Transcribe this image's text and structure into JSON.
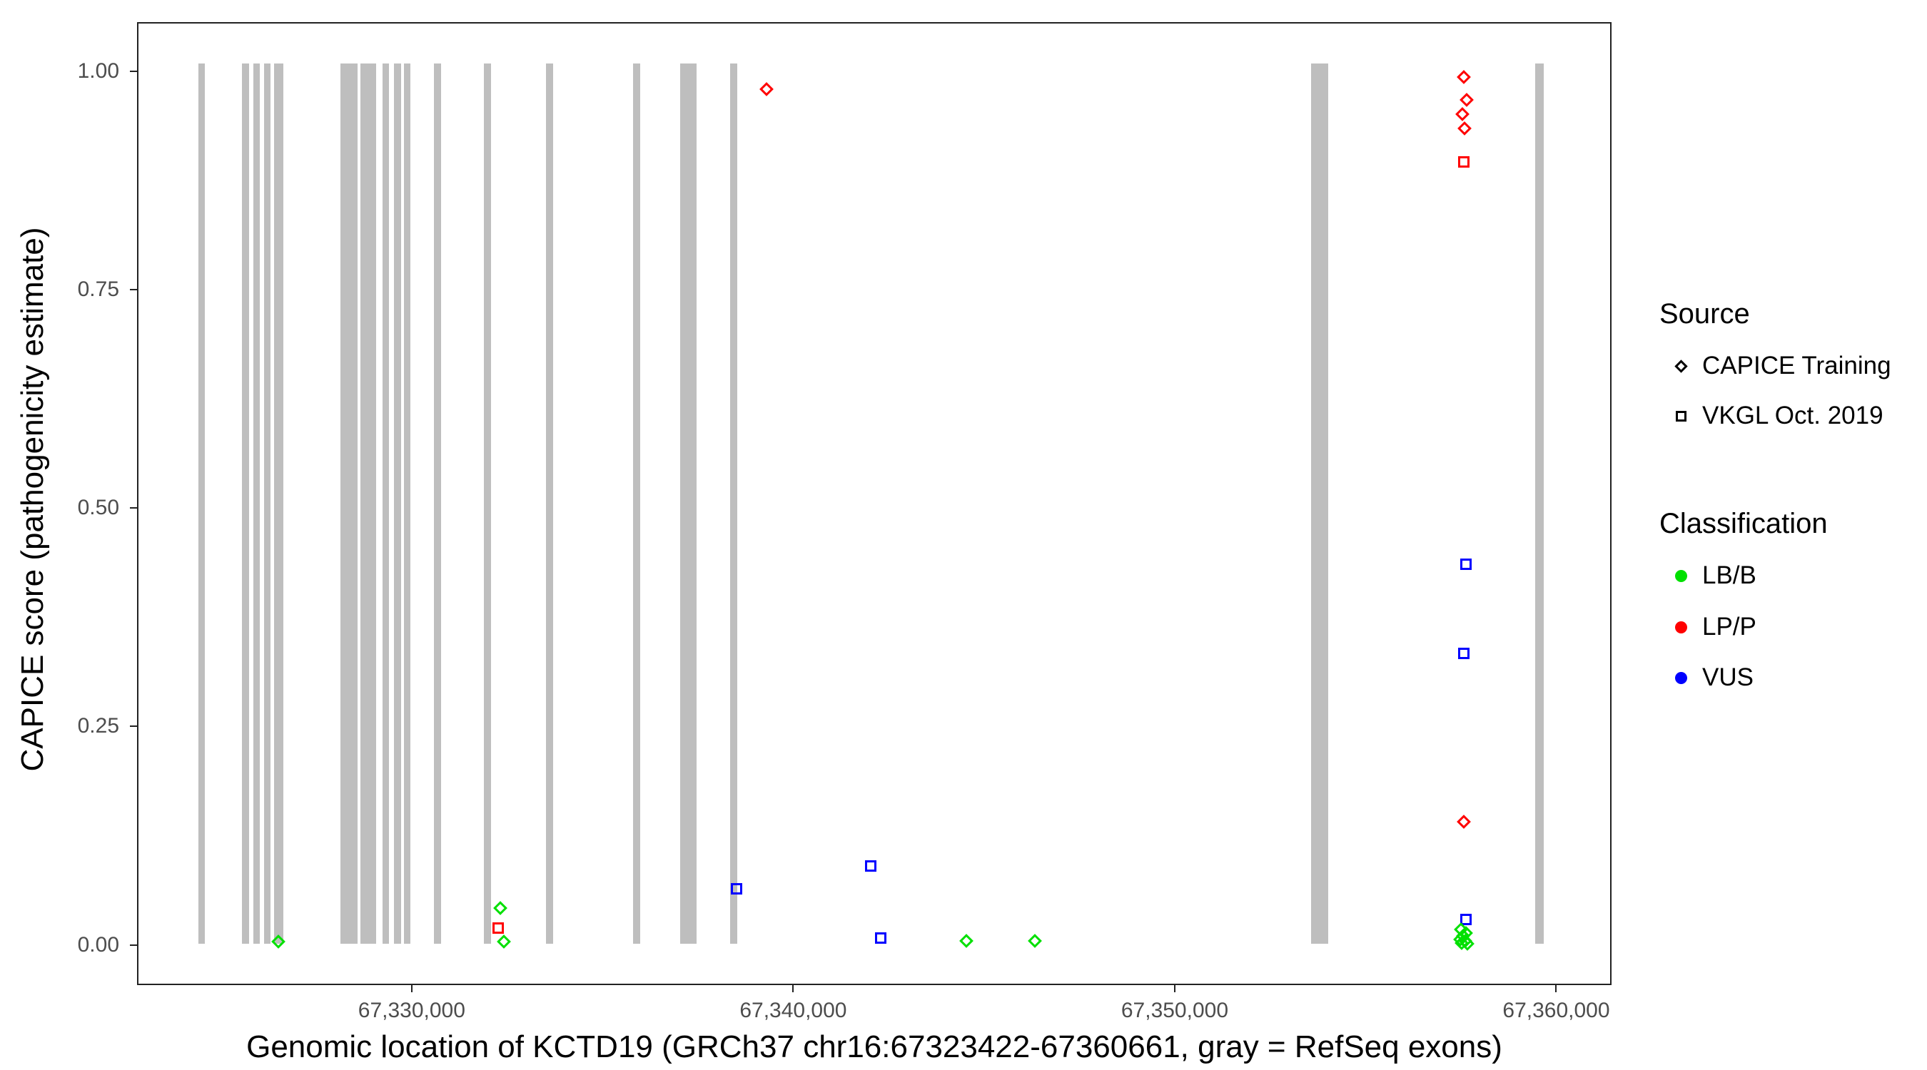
{
  "chart_data": {
    "type": "scatter",
    "title": "",
    "xlabel": "Genomic location of KCTD19 (GRCh37 chr16:67323422-67360661, gray = RefSeq exons)",
    "ylabel": "CAPICE score (pathogenicity estimate)",
    "xlim": [
      67322800,
      67361450
    ],
    "ylim": [
      -0.046,
      1.056
    ],
    "grid": false,
    "legend_position": "right",
    "x_ticks": [
      {
        "value": 67330000,
        "label": "67,330,000"
      },
      {
        "value": 67340000,
        "label": "67,340,000"
      },
      {
        "value": 67350000,
        "label": "67,350,000"
      },
      {
        "value": 67360000,
        "label": "67,360,000"
      }
    ],
    "y_ticks": [
      {
        "value": 0.0,
        "label": "0.00"
      },
      {
        "value": 0.25,
        "label": "0.25"
      },
      {
        "value": 0.5,
        "label": "0.50"
      },
      {
        "value": 0.75,
        "label": "0.75"
      },
      {
        "value": 1.0,
        "label": "1.00"
      }
    ],
    "exon_color": "#BEBEBE",
    "exon_bar_yrange": [
      0,
      1.01
    ],
    "exons": [
      [
        67324380,
        67324540
      ],
      [
        67325520,
        67325700
      ],
      [
        67325815,
        67325980
      ],
      [
        67326095,
        67326260
      ],
      [
        67326370,
        67326600
      ],
      [
        67328105,
        67328560
      ],
      [
        67328630,
        67329050
      ],
      [
        67329215,
        67329380
      ],
      [
        67329510,
        67329690
      ],
      [
        67329770,
        67329935
      ],
      [
        67330555,
        67330750
      ],
      [
        67331865,
        67332060
      ],
      [
        67333495,
        67333690
      ],
      [
        67335785,
        67335980
      ],
      [
        67337025,
        67337450
      ],
      [
        67338335,
        67338530
      ],
      [
        67353595,
        67354050
      ],
      [
        67359480,
        67359705
      ]
    ],
    "shape_by_source": {
      "CAPICE Training": "diamond",
      "VKGL Oct. 2019": "square"
    },
    "color_by_classification": {
      "LB/B": "#00E000",
      "LP/P": "#FF0000",
      "VUS": "#0000FF"
    },
    "points": [
      {
        "x": 67326470,
        "y": 0.002,
        "source": "CAPICE Training",
        "classification": "LB/B"
      },
      {
        "x": 67332300,
        "y": 0.041,
        "source": "CAPICE Training",
        "classification": "LB/B"
      },
      {
        "x": 67332250,
        "y": 0.018,
        "source": "VKGL Oct. 2019",
        "classification": "LP/P"
      },
      {
        "x": 67332400,
        "y": 0.002,
        "source": "CAPICE Training",
        "classification": "LB/B"
      },
      {
        "x": 67338500,
        "y": 0.063,
        "source": "VKGL Oct. 2019",
        "classification": "VUS"
      },
      {
        "x": 67339290,
        "y": 0.981,
        "source": "CAPICE Training",
        "classification": "LP/P"
      },
      {
        "x": 67342030,
        "y": 0.089,
        "source": "VKGL Oct. 2019",
        "classification": "VUS"
      },
      {
        "x": 67342290,
        "y": 0.006,
        "source": "VKGL Oct. 2019",
        "classification": "VUS"
      },
      {
        "x": 67344540,
        "y": 0.003,
        "source": "CAPICE Training",
        "classification": "LB/B"
      },
      {
        "x": 67346340,
        "y": 0.003,
        "source": "CAPICE Training",
        "classification": "LB/B"
      },
      {
        "x": 67357600,
        "y": 0.995,
        "source": "CAPICE Training",
        "classification": "LP/P"
      },
      {
        "x": 67357680,
        "y": 0.968,
        "source": "CAPICE Training",
        "classification": "LP/P"
      },
      {
        "x": 67357570,
        "y": 0.952,
        "source": "CAPICE Training",
        "classification": "LP/P"
      },
      {
        "x": 67357630,
        "y": 0.936,
        "source": "CAPICE Training",
        "classification": "LP/P"
      },
      {
        "x": 67357610,
        "y": 0.897,
        "source": "VKGL Oct. 2019",
        "classification": "LP/P"
      },
      {
        "x": 67357660,
        "y": 0.435,
        "source": "VKGL Oct. 2019",
        "classification": "VUS"
      },
      {
        "x": 67357600,
        "y": 0.333,
        "source": "VKGL Oct. 2019",
        "classification": "VUS"
      },
      {
        "x": 67357610,
        "y": 0.14,
        "source": "CAPICE Training",
        "classification": "LP/P"
      },
      {
        "x": 67357660,
        "y": 0.028,
        "source": "VKGL Oct. 2019",
        "classification": "VUS"
      },
      {
        "x": 67357540,
        "y": 0.016,
        "source": "CAPICE Training",
        "classification": "LB/B"
      },
      {
        "x": 67357670,
        "y": 0.012,
        "source": "CAPICE Training",
        "classification": "LB/B"
      },
      {
        "x": 67357590,
        "y": 0.009,
        "source": "CAPICE Training",
        "classification": "LB/B"
      },
      {
        "x": 67357510,
        "y": 0.005,
        "source": "CAPICE Training",
        "classification": "LB/B"
      },
      {
        "x": 67357640,
        "y": 0.003,
        "source": "CAPICE Training",
        "classification": "LB/B"
      },
      {
        "x": 67357560,
        "y": 0.001,
        "source": "CAPICE Training",
        "classification": "LB/B"
      },
      {
        "x": 67357700,
        "y": 0.0,
        "source": "CAPICE Training",
        "classification": "LB/B"
      }
    ]
  },
  "legend": {
    "source": {
      "title": "Source",
      "items": [
        {
          "label": "CAPICE Training",
          "shape": "diamond"
        },
        {
          "label": "VKGL Oct. 2019",
          "shape": "square"
        }
      ]
    },
    "classification": {
      "title": "Classification",
      "items": [
        {
          "label": "LB/B",
          "color": "#00E000"
        },
        {
          "label": "LP/P",
          "color": "#FF0000"
        },
        {
          "label": "VUS",
          "color": "#0000FF"
        }
      ]
    }
  }
}
